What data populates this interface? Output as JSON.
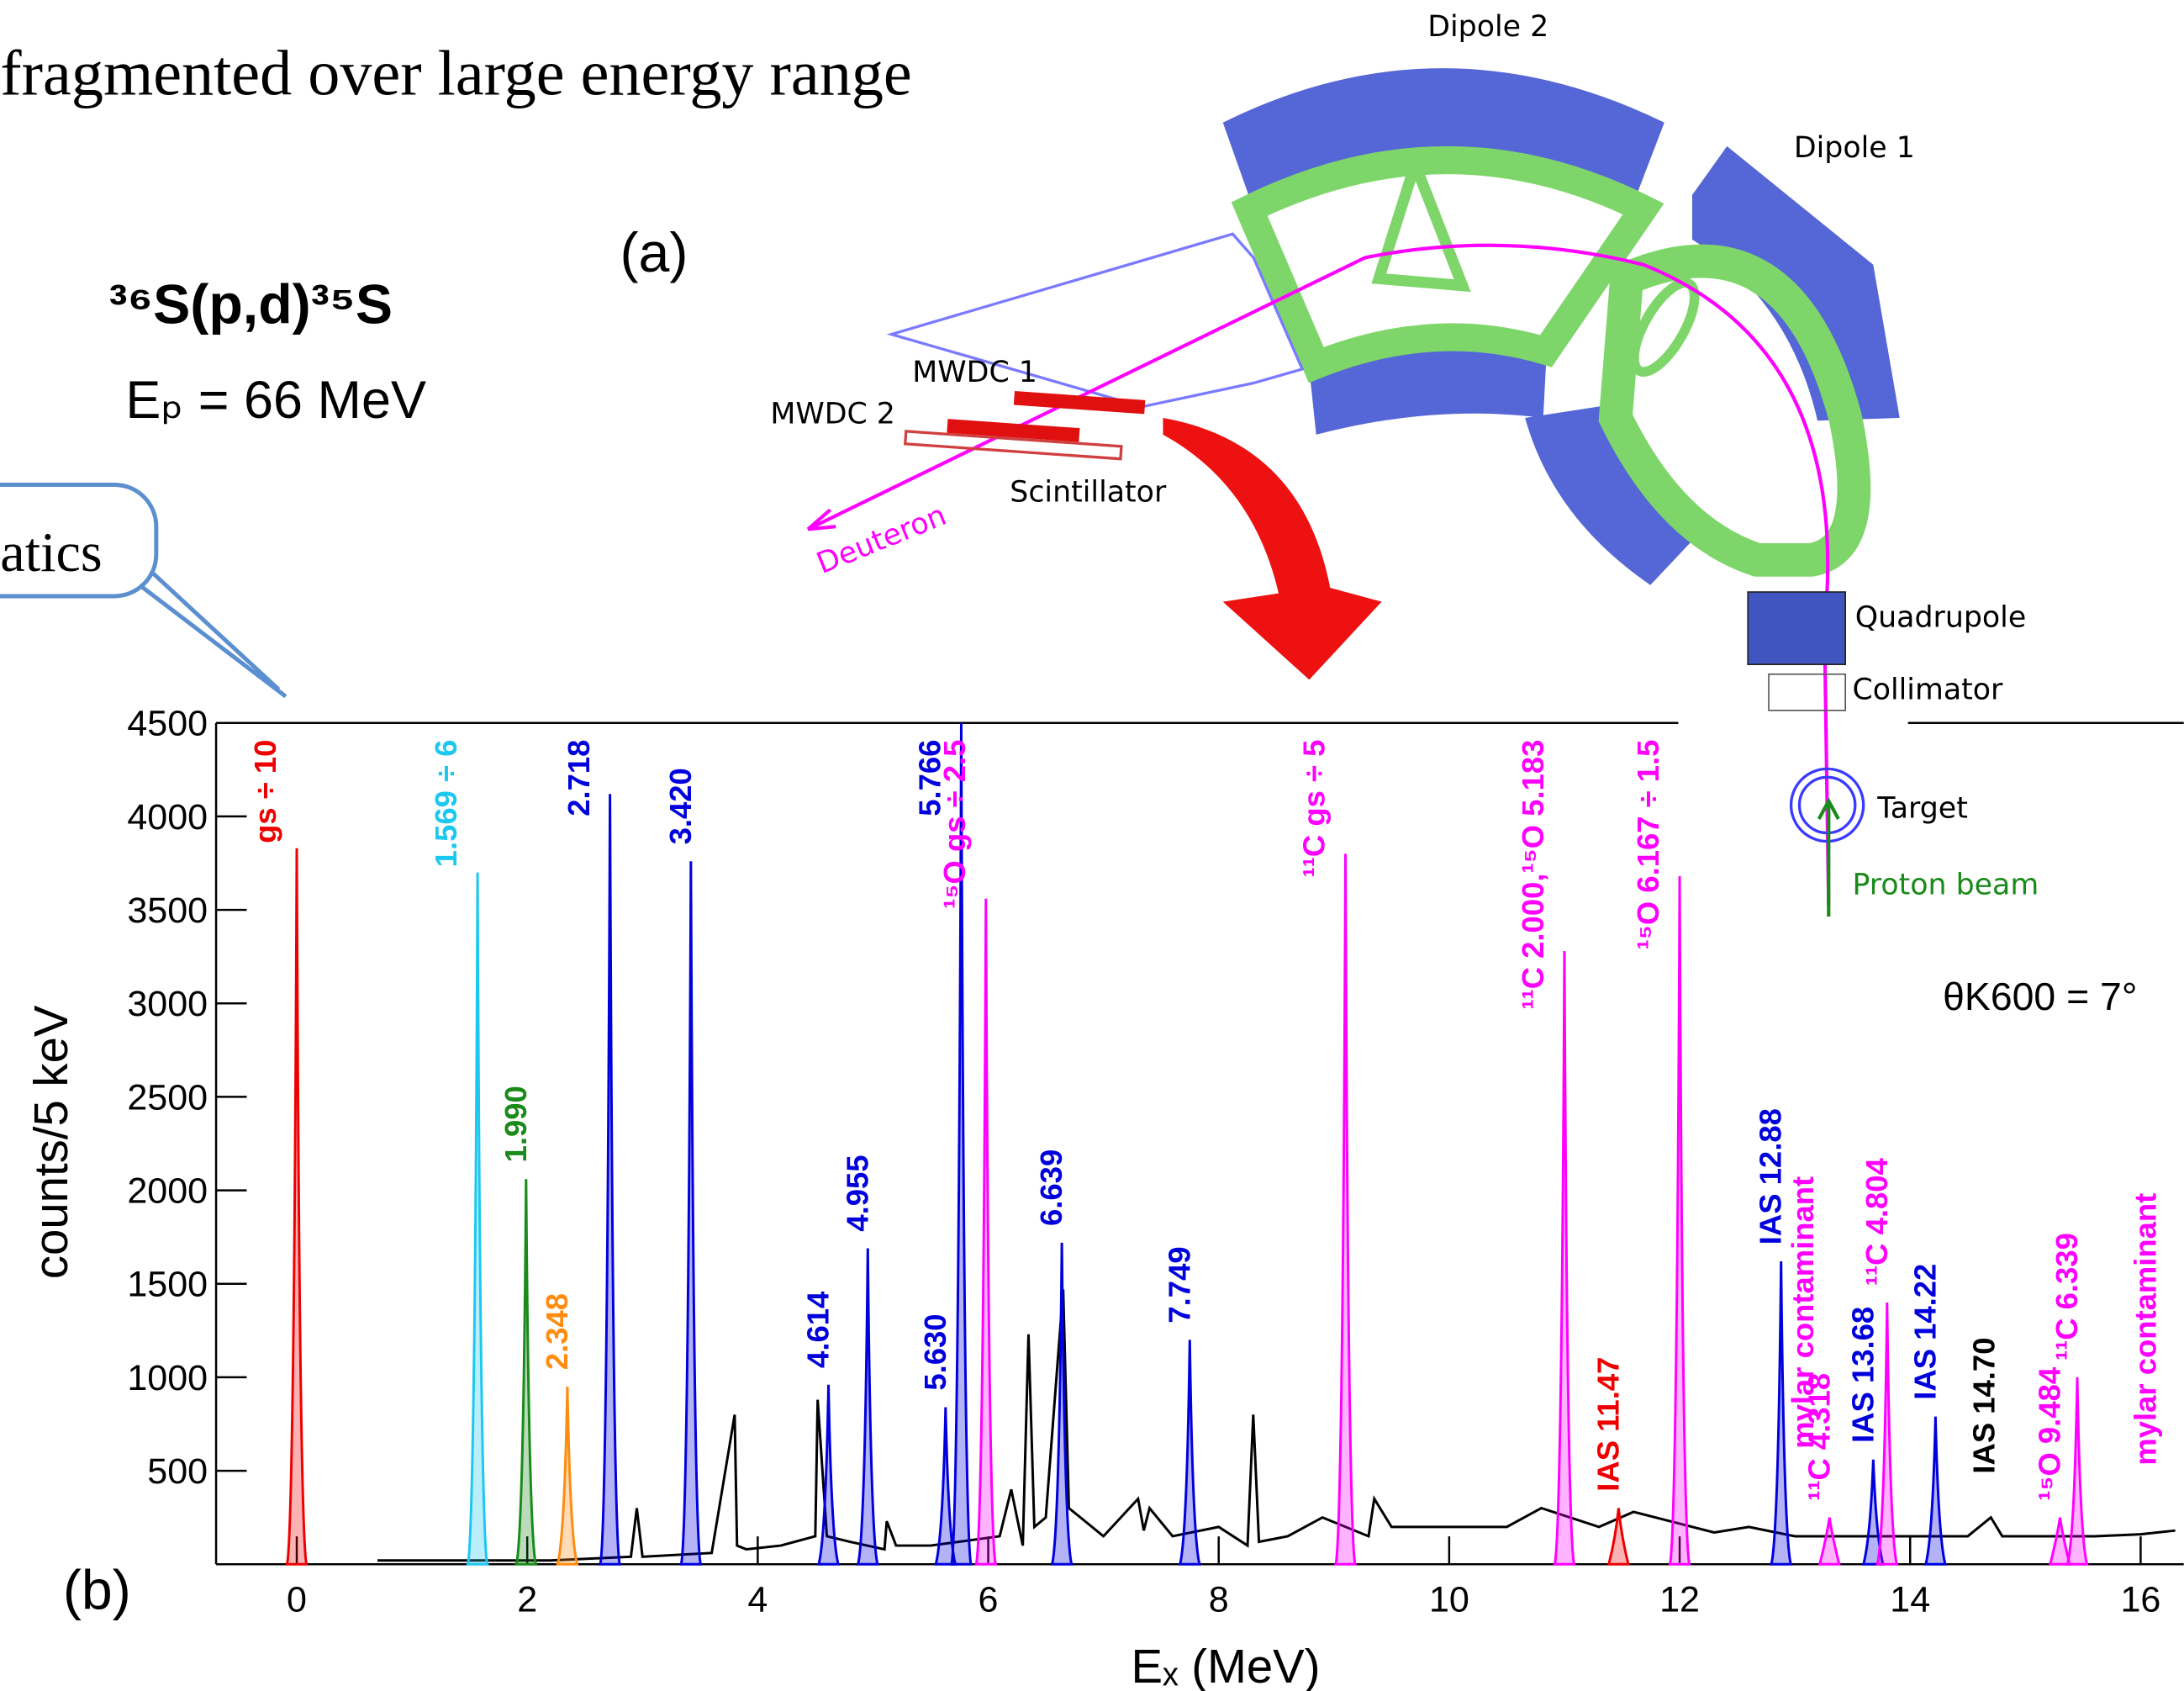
{
  "slide": {
    "heading": "fragmented over large energy range",
    "callout": "atics"
  },
  "figure": {
    "panel_a": "(a)",
    "panel_b": "(b)",
    "reaction": "³⁶S(p,d)³⁵S",
    "beam_energy": "Eₚ = 66 MeV",
    "angle": "θK600 = 7°"
  },
  "diagram": {
    "labels": [
      "Dipole 2",
      "Dipole 1",
      "MWDC 1",
      "MWDC 2",
      "Scintillator",
      "Deuteron",
      "Quadrupole",
      "Collimator",
      "Target",
      "Proton beam"
    ]
  },
  "chart_data": {
    "type": "line",
    "xlabel": "Eₓ (MeV)",
    "ylabel": "counts/5 keV",
    "xlim": [
      -0.7,
      16.35
    ],
    "ylim": [
      0,
      4500
    ],
    "xticks": [
      0,
      2,
      4,
      6,
      8,
      10,
      12,
      14,
      16
    ],
    "yticks": [
      500,
      1000,
      1500,
      2000,
      2500,
      3000,
      3500,
      4000,
      4500
    ],
    "x": [
      0.7,
      1.0,
      1.3,
      1.8,
      2.2,
      2.9,
      2.95,
      3.0,
      3.6,
      3.8,
      3.82,
      3.9,
      4.2,
      4.5,
      4.52,
      4.6,
      4.8,
      5.1,
      5.12,
      5.2,
      5.5,
      6.1,
      6.2,
      6.3,
      6.35,
      6.4,
      6.5,
      6.65,
      6.7,
      6.8,
      7.0,
      7.3,
      7.35,
      7.4,
      7.6,
      8.0,
      8.25,
      8.3,
      8.35,
      8.6,
      8.9,
      9.3,
      9.35,
      9.5,
      10.0,
      10.5,
      10.8,
      11.3,
      11.6,
      12.3,
      12.6,
      13.0,
      13.5,
      14.0,
      14.5,
      14.7,
      14.8,
      15.0,
      15.6,
      16.0,
      16.3
    ],
    "series": [
      {
        "color": "#000000",
        "values": [
          20,
          20,
          20,
          20,
          20,
          40,
          300,
          40,
          60,
          800,
          100,
          80,
          100,
          150,
          880,
          150,
          120,
          80,
          230,
          100,
          100,
          150,
          400,
          100,
          1230,
          200,
          250,
          1470,
          300,
          250,
          150,
          350,
          180,
          300,
          150,
          200,
          100,
          800,
          120,
          150,
          250,
          150,
          350,
          200,
          200,
          200,
          300,
          200,
          280,
          170,
          200,
          150,
          150,
          150,
          150,
          250,
          150,
          150,
          150,
          160,
          180
        ]
      }
    ],
    "peaks": [
      {
        "x": 0,
        "value": 3830,
        "color": "#ee0000",
        "label": "gs ÷ 10"
      },
      {
        "x": 1.569,
        "value": 3700,
        "color": "#1cc8f0",
        "label": "1.569 ÷ 6"
      },
      {
        "x": 1.99,
        "value": 2060,
        "color": "#1a8a1a",
        "label": "1.990"
      },
      {
        "x": 2.348,
        "value": 950,
        "color": "#ff8c10",
        "label": "2.348"
      },
      {
        "x": 2.718,
        "value": 4120,
        "color": "#0000dd",
        "label": "2.718"
      },
      {
        "x": 3.42,
        "value": 3760,
        "color": "#0000dd",
        "label": "3.420"
      },
      {
        "x": 4.614,
        "value": 960,
        "color": "#0000dd",
        "label": "4.614"
      },
      {
        "x": 4.955,
        "value": 1690,
        "color": "#0000dd",
        "label": "4.955"
      },
      {
        "x": 5.63,
        "value": 840,
        "color": "#0000dd",
        "label": "5.630"
      },
      {
        "x": 5.766,
        "value": 4500,
        "color": "#0000dd",
        "label": "5.766"
      },
      {
        "x": 5.98,
        "value": 3560,
        "color": "#ff00ff",
        "label": "¹⁵O gs ÷ 2.5"
      },
      {
        "x": 6.639,
        "value": 1720,
        "color": "#0000dd",
        "label": "6.639"
      },
      {
        "x": 7.749,
        "value": 1200,
        "color": "#0000dd",
        "label": "7.749"
      },
      {
        "x": 9.1,
        "value": 3800,
        "color": "#ff00ff",
        "label": "¹¹C gs ÷ 5"
      },
      {
        "x": 11.0,
        "value": 3280,
        "color": "#ff00ff",
        "label": "¹¹C 2.000,¹⁵O 5.183"
      },
      {
        "x": 11.47,
        "value": 300,
        "color": "#ee0000",
        "label": "IAS 11.47"
      },
      {
        "x": 12.0,
        "value": 3680,
        "color": "#ff00ff",
        "label": "¹⁵O 6.167 ÷ 1.5"
      },
      {
        "x": 12.88,
        "value": 1620,
        "color": "#0000dd",
        "label": "IAS 12.88"
      },
      {
        "x": 13.3,
        "value": 250,
        "color": "#ff00ff",
        "label": "¹¹C 4.318"
      },
      {
        "x": 13.68,
        "value": 560,
        "color": "#0000dd",
        "label": "IAS 13.68"
      },
      {
        "x": 13.8,
        "value": 1400,
        "color": "#ff00ff",
        "label": "¹¹C 4.804"
      },
      {
        "x": 14.22,
        "value": 790,
        "color": "#0000dd",
        "label": "IAS 14.22"
      },
      {
        "x": 15.3,
        "value": 250,
        "color": "#ff00ff",
        "label": "¹⁵O 9.484"
      },
      {
        "x": 15.45,
        "value": 1000,
        "color": "#ff00ff",
        "label": "¹¹C 6.339"
      }
    ],
    "annotations": [
      {
        "text": "mylar contaminant",
        "color": "#ff00ff"
      },
      {
        "text": "IAS 14.70",
        "color": "#000000"
      },
      {
        "text": "mylar contaminant",
        "color": "#ff00ff"
      }
    ]
  }
}
